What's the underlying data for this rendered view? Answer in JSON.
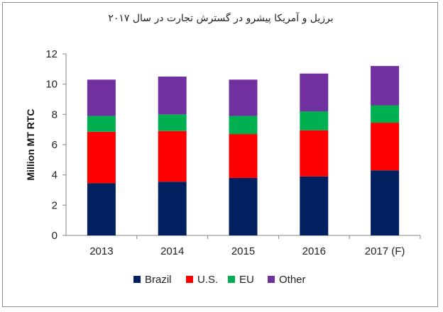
{
  "chart_data": {
    "type": "bar",
    "stacked": true,
    "title": "برزیل و آمریکا پیشرو در گسترش تجارت در سال ۲۰۱۷",
    "xlabel": "",
    "ylabel": "Million MT RTC",
    "ylim": [
      0,
      12
    ],
    "yticks": [
      "0",
      "2",
      "4",
      "6",
      "8",
      "10",
      "12"
    ],
    "categories": [
      "2013",
      "2014",
      "2015",
      "2016",
      "2017 (F)"
    ],
    "series": [
      {
        "name": "Brazil",
        "color": "#002060",
        "values": [
          3.45,
          3.55,
          3.8,
          3.9,
          4.3
        ]
      },
      {
        "name": "U.S.",
        "color": "#ff0000",
        "values": [
          3.4,
          3.35,
          2.9,
          3.05,
          3.15
        ]
      },
      {
        "name": "EU",
        "color": "#00b050",
        "values": [
          1.05,
          1.1,
          1.2,
          1.25,
          1.15
        ]
      },
      {
        "name": "Other",
        "color": "#7030a0",
        "values": [
          2.4,
          2.5,
          2.4,
          2.5,
          2.6
        ]
      }
    ],
    "grid": false,
    "legend_position": "bottom"
  }
}
